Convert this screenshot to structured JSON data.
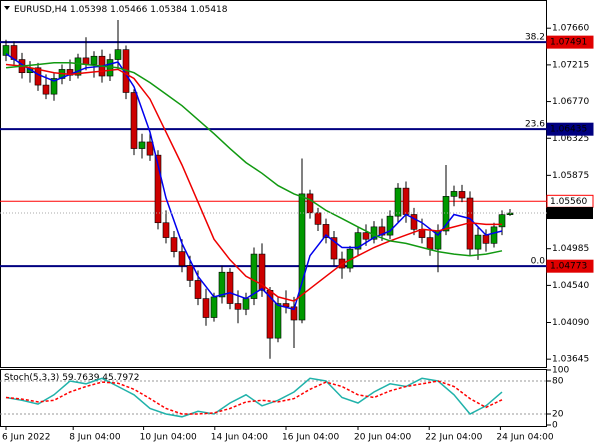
{
  "chart_data": [
    {
      "type": "candlestick",
      "title": "EURUSD,H4",
      "open": [
        1.0733,
        1.0745,
        1.0728,
        1.0712,
        1.0718,
        1.0697,
        1.0686,
        1.0705,
        1.0716,
        1.0709,
        1.073,
        1.0722,
        1.0732,
        1.0708,
        1.0728,
        1.074,
        1.0688,
        1.062,
        1.0628,
        1.0612,
        1.053,
        1.0512,
        1.0495,
        1.0478,
        1.046,
        1.0438,
        1.0415,
        1.044,
        1.047,
        1.0432,
        1.0425,
        1.0438,
        1.0492,
        1.0448,
        1.039,
        1.0432,
        1.0428,
        1.0412,
        1.0565,
        1.0542,
        1.0528,
        1.0512,
        1.0486,
        1.0475,
        1.0498,
        1.0518,
        1.051,
        1.0525,
        1.0515,
        1.0538,
        1.0572,
        1.054,
        1.0522,
        1.0512,
        1.0498,
        1.052,
        1.0562,
        1.0568,
        1.056,
        1.0498,
        1.0515,
        1.0505,
        1.0525,
        1.05398
      ],
      "high": [
        1.0752,
        1.075,
        1.0736,
        1.0726,
        1.0724,
        1.071,
        1.0712,
        1.0722,
        1.0728,
        1.0735,
        1.0755,
        1.0738,
        1.074,
        1.0735,
        1.0776,
        1.0745,
        1.0692,
        1.0638,
        1.064,
        1.0618,
        1.0545,
        1.052,
        1.051,
        1.049,
        1.0472,
        1.045,
        1.0445,
        1.0478,
        1.0475,
        1.0448,
        1.0445,
        1.05,
        1.0505,
        1.0452,
        1.044,
        1.0448,
        1.044,
        1.0608,
        1.057,
        1.0548,
        1.0535,
        1.052,
        1.0495,
        1.0502,
        1.0525,
        1.0528,
        1.0532,
        1.0535,
        1.0545,
        1.0578,
        1.058,
        1.0548,
        1.0535,
        1.052,
        1.0528,
        1.06,
        1.0575,
        1.0576,
        1.0568,
        1.0525,
        1.0522,
        1.053,
        1.0545,
        1.05466
      ],
      "low": [
        1.0726,
        1.0722,
        1.0705,
        1.07,
        1.069,
        1.068,
        1.0678,
        1.0698,
        1.0702,
        1.0705,
        1.0715,
        1.0706,
        1.07,
        1.0702,
        1.0716,
        1.068,
        1.0612,
        1.0608,
        1.0605,
        1.0522,
        1.0505,
        1.0488,
        1.047,
        1.0452,
        1.043,
        1.0405,
        1.041,
        1.0432,
        1.0425,
        1.0408,
        1.0418,
        1.043,
        1.044,
        1.0365,
        1.0385,
        1.042,
        1.0378,
        1.0408,
        1.0535,
        1.052,
        1.0505,
        1.0478,
        1.0462,
        1.047,
        1.049,
        1.0502,
        1.0505,
        1.0508,
        1.051,
        1.053,
        1.053,
        1.0515,
        1.0505,
        1.049,
        1.047,
        1.0515,
        1.055,
        1.0555,
        1.049,
        1.0485,
        1.0495,
        1.05,
        1.0515,
        1.05384
      ],
      "close": [
        1.0745,
        1.0728,
        1.0712,
        1.0718,
        1.0697,
        1.0686,
        1.0705,
        1.0716,
        1.0709,
        1.073,
        1.0722,
        1.0732,
        1.0708,
        1.0728,
        1.074,
        1.0688,
        1.062,
        1.0628,
        1.0612,
        1.053,
        1.0512,
        1.0495,
        1.0478,
        1.046,
        1.0438,
        1.0415,
        1.044,
        1.047,
        1.0432,
        1.0425,
        1.0438,
        1.0492,
        1.0448,
        1.039,
        1.0432,
        1.0428,
        1.0412,
        1.0565,
        1.0542,
        1.0528,
        1.0512,
        1.0486,
        1.0475,
        1.0498,
        1.0518,
        1.051,
        1.0525,
        1.0515,
        1.0538,
        1.0572,
        1.054,
        1.0522,
        1.0512,
        1.0498,
        1.052,
        1.0562,
        1.0568,
        1.056,
        1.0498,
        1.0515,
        1.0505,
        1.0525,
        1.05398,
        1.05418
      ],
      "up_color": "#009900",
      "down_color": "#cc0000",
      "wick_color": "#000000",
      "xlim": [
        -0.75,
        67.625
      ],
      "xticks": [
        {
          "value": 0,
          "label": "6 Jun 2022"
        },
        {
          "value": 8.4,
          "label": "8 Jun 04:00"
        },
        {
          "value": 17.2,
          "label": "10 Jun 04:00"
        },
        {
          "value": 26.1,
          "label": "14 Jun 04:00"
        },
        {
          "value": 35,
          "label": "16 Jun 04:00"
        },
        {
          "value": 44,
          "label": "20 Jun 04:00"
        },
        {
          "value": 52.9,
          "label": "22 Jun 04:00"
        },
        {
          "value": 61.8,
          "label": "24 Jun 04:00"
        }
      ],
      "ylim": [
        1.0355,
        1.0799
      ],
      "yticks": [
        {
          "value": 1.0766,
          "label": "1.07660"
        },
        1.07215,
        {
          "value": 1.0677,
          "label": "1.06770"
        },
        1.06325,
        1.05875,
        1.04985,
        {
          "value": 1.0454,
          "label": "1.04540"
        },
        {
          "value": 1.0409,
          "label": "1.04090"
        },
        1.03645
      ],
      "lines": {
        "x": [
          0,
          2,
          4,
          6,
          8,
          10,
          12,
          14,
          16,
          18,
          20,
          22,
          24,
          26,
          28,
          30,
          32,
          34,
          36,
          38,
          40,
          42,
          44,
          46,
          48,
          50,
          52,
          54,
          56,
          58,
          60,
          62
        ],
        "series": [
          {
            "color": "#0000ee",
            "values": [
              1.0735,
              1.0722,
              1.071,
              1.0702,
              1.071,
              1.0718,
              1.072,
              1.0725,
              1.0695,
              1.064,
              1.056,
              1.0505,
              1.0465,
              1.044,
              1.0445,
              1.0438,
              1.045,
              1.043,
              1.0425,
              1.049,
              1.0515,
              1.05,
              1.05,
              1.0512,
              1.052,
              1.054,
              1.053,
              1.0515,
              1.054,
              1.0535,
              1.0515,
              1.052
            ]
          },
          {
            "color": "#ee0000",
            "values": [
              1.0722,
              1.072,
              1.0716,
              1.0712,
              1.071,
              1.0712,
              1.0714,
              1.0716,
              1.0705,
              1.068,
              1.064,
              1.06,
              1.0555,
              1.051,
              1.0485,
              1.0465,
              1.0455,
              1.044,
              1.0435,
              1.045,
              1.0465,
              1.048,
              1.049,
              1.05,
              1.0508,
              1.0515,
              1.0522,
              1.052,
              1.0525,
              1.053,
              1.0528,
              1.0528
            ]
          },
          {
            "color": "#119911",
            "values": [
              1.0718,
              1.072,
              1.0722,
              1.0724,
              1.0724,
              1.0722,
              1.072,
              1.0718,
              1.0712,
              1.07,
              1.0686,
              1.0672,
              1.0655,
              1.0638,
              1.062,
              1.0603,
              1.059,
              1.0575,
              1.0565,
              1.0558,
              1.0545,
              1.0535,
              1.0525,
              1.0515,
              1.0508,
              1.0505,
              1.05,
              1.0495,
              1.0492,
              1.049,
              1.0492,
              1.0496
            ]
          }
        ]
      },
      "levels": {
        "names": [
          "38.2",
          "23.6",
          null,
          "0.0"
        ],
        "values": [
          1.07491,
          1.06435,
          1.0556,
          1.04773
        ],
        "value_labels": [
          "1.07491",
          "1.06435",
          "1.05560",
          "1.04773"
        ],
        "colors": [
          "#000080",
          "#000080",
          "#ff0000",
          "#000080"
        ],
        "tag_colors": [
          "#e00000",
          "#000080",
          "#ffffff",
          "#e00000"
        ]
      },
      "price_tag_color": "#000000"
    },
    {
      "type": "line",
      "title": "Stoch(5,3,3)",
      "x": [
        0,
        2,
        4,
        6,
        8,
        10,
        12,
        14,
        16,
        18,
        20,
        22,
        24,
        26,
        28,
        30,
        32,
        34,
        36,
        38,
        40,
        42,
        44,
        46,
        48,
        50,
        52,
        54,
        56,
        58,
        60,
        62
      ],
      "series": [
        {
          "color": "#20b2aa",
          "values": [
            50,
            45,
            38,
            55,
            80,
            75,
            85,
            70,
            55,
            30,
            20,
            15,
            25,
            20,
            40,
            55,
            35,
            45,
            60,
            85,
            80,
            50,
            40,
            60,
            75,
            70,
            85,
            80,
            55,
            20,
            35,
            59.7639
          ]
        },
        {
          "color": "#ff0000",
          "dashed": true,
          "values": [
            50,
            47,
            42,
            45,
            60,
            70,
            78,
            76,
            65,
            48,
            30,
            20,
            20,
            22,
            30,
            42,
            45,
            42,
            48,
            65,
            78,
            70,
            55,
            50,
            62,
            70,
            75,
            80,
            70,
            48,
            32,
            45.7972
          ]
        }
      ],
      "ylim": [
        0,
        100
      ],
      "yticks": [
        100,
        80,
        20,
        0
      ]
    }
  ]
}
